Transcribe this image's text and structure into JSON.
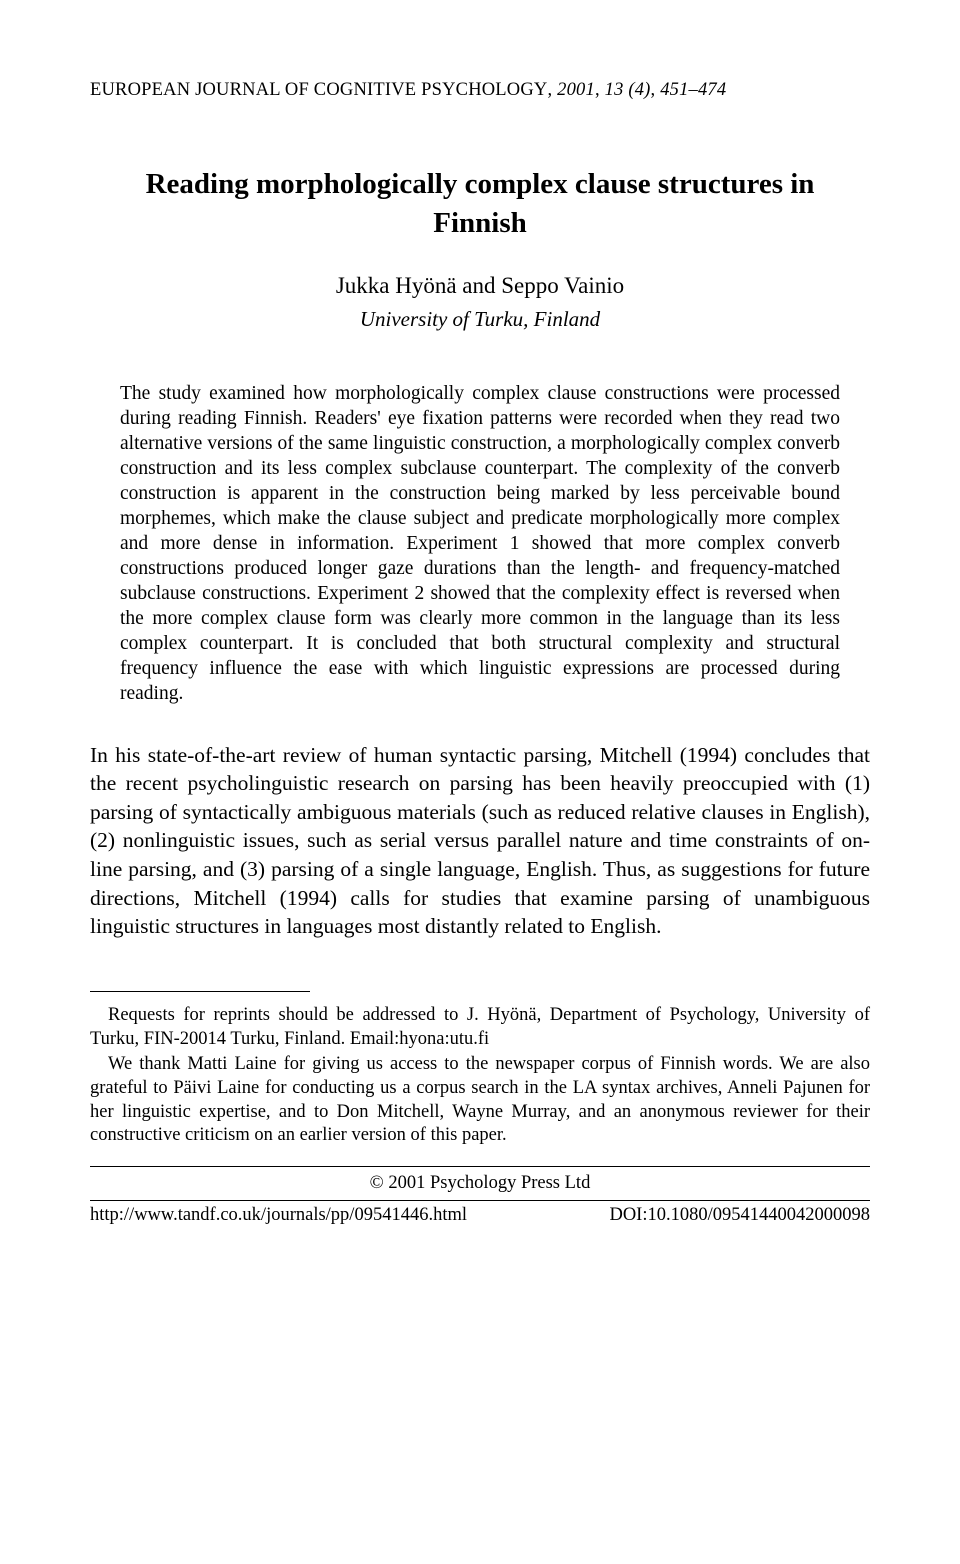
{
  "header": {
    "journal": "EUROPEAN JOURNAL OF COGNITIVE PSYCHOLOGY",
    "year": "2001",
    "volume": "13",
    "issue": "(4)",
    "pages": "451–474"
  },
  "title": "Reading morphologically complex clause structures in Finnish",
  "authors": "Jukka Hyönä and Seppo Vainio",
  "affiliation": "University of Turku, Finland",
  "abstract": "The study examined how morphologically complex clause constructions were processed during reading Finnish. Readers' eye fixation patterns were recorded when they read two alternative versions of the same linguistic construction, a morphologically complex converb construction and its less complex subclause counterpart. The complexity of the converb construction is apparent in the construction being marked by less perceivable bound morphemes, which make the clause subject and predicate morphologically more complex and more dense in information. Experiment 1 showed that more complex converb constructions produced longer gaze durations than the length- and frequency-matched subclause constructions. Experiment 2 showed that the complexity effect is reversed when the more complex clause form was clearly more common in the language than its less complex counterpart. It is concluded that both structural complexity and structural frequency influence the ease with which linguistic expressions are processed during reading.",
  "intro": "In his state-of-the-art review of human syntactic parsing, Mitchell (1994) concludes that the recent psycholinguistic research on parsing has been heavily preoccupied with (1) parsing of syntactically ambiguous materials (such as reduced relative clauses in English), (2) nonlinguistic issues, such as serial versus parallel nature and time constraints of on-line parsing, and (3) parsing of a single language, English. Thus, as suggestions for future directions, Mitchell (1994) calls for studies that examine parsing of unambiguous linguistic structures in languages most distantly related to English.",
  "footnotes": {
    "reprints": "Requests for reprints should be addressed to J. Hyönä, Department of Psychology, University of Turku, FIN-20014 Turku, Finland. Email:hyona:utu.fi",
    "thanks": "We thank Matti Laine for giving us access to the newspaper corpus of Finnish words. We are also grateful to Päivi Laine for conducting us a corpus search in the LA syntax archives, Anneli Pajunen for her linguistic expertise, and to Don Mitchell, Wayne Murray, and an anonymous reviewer for their constructive criticism on an earlier version of this paper."
  },
  "copyright": "© 2001 Psychology Press Ltd",
  "footer": {
    "url": "http://www.tandf.co.uk/journals/pp/09541446.html",
    "doi": "DOI:10.1080/09541440042000098"
  }
}
